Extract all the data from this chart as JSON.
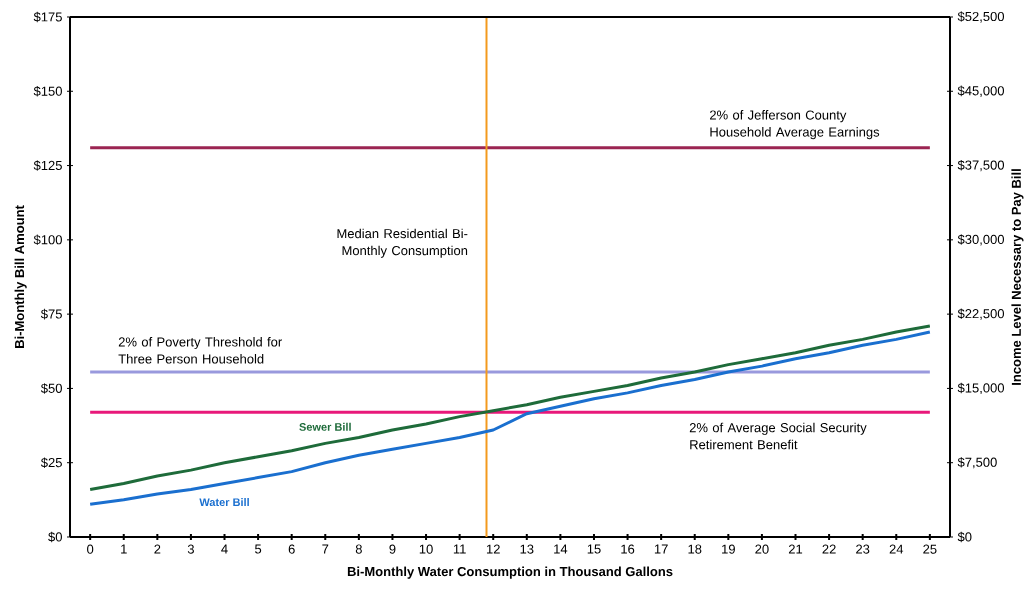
{
  "chart_data": {
    "type": "line",
    "xlabel": "Bi-Monthly Water Consumption in Thousand Gallons",
    "ylabel": "Bi-Monthly Bill Amount",
    "y2label": "Income Level Necessary to Pay Bill",
    "x": [
      0,
      1,
      2,
      3,
      4,
      5,
      6,
      7,
      8,
      9,
      10,
      11,
      12,
      13,
      14,
      15,
      16,
      17,
      18,
      19,
      20,
      21,
      22,
      23,
      24,
      25
    ],
    "series": [
      {
        "name": "Sewer Bill",
        "color": "#1e6b3a",
        "values": [
          16,
          18,
          20.5,
          22.5,
          25,
          27,
          29,
          31.5,
          33.5,
          36,
          38,
          40.5,
          42.5,
          44.5,
          47,
          49,
          51,
          53.5,
          55.5,
          58,
          60,
          62,
          64.5,
          66.5,
          69,
          71
        ]
      },
      {
        "name": "Water Bill",
        "color": "#1a6fcf",
        "values": [
          11,
          12.5,
          14.5,
          16,
          18,
          20,
          22,
          25,
          27.5,
          29.5,
          31.5,
          33.5,
          36,
          41.5,
          44,
          46.5,
          48.5,
          51,
          53,
          55.5,
          57.5,
          60,
          62,
          64.5,
          66.5,
          69
        ]
      }
    ],
    "ref_lines": [
      {
        "axis": "y",
        "value": 131,
        "label": "2% of Jefferson County Household Average Earnings",
        "color": "#9b2552"
      },
      {
        "axis": "y",
        "value": 55.5,
        "label": "2% of Poverty Threshold for Three Person Household",
        "color": "#9999dd"
      },
      {
        "axis": "y",
        "value": 42,
        "label": "2% of Average Social Security Retirement Benefit",
        "color": "#e8187a"
      },
      {
        "axis": "x",
        "value": 11.8,
        "label": "Median Residential Bi-Monthly Consumption",
        "color": "#f39a1e"
      }
    ],
    "xlim": [
      -0.6,
      25.6
    ],
    "xticks": [
      0,
      1,
      2,
      3,
      4,
      5,
      6,
      7,
      8,
      9,
      10,
      11,
      12,
      13,
      14,
      15,
      16,
      17,
      18,
      19,
      20,
      21,
      22,
      23,
      24,
      25
    ],
    "ylim": [
      0,
      175
    ],
    "yticks": [
      {
        "value": 0,
        "label": "$0"
      },
      {
        "value": 25,
        "label": "$25"
      },
      {
        "value": 50,
        "label": "$50"
      },
      {
        "value": 75,
        "label": "$75"
      },
      {
        "value": 100,
        "label": "$100"
      },
      {
        "value": 125,
        "label": "$125"
      },
      {
        "value": 150,
        "label": "$150"
      },
      {
        "value": 175,
        "label": "$175"
      }
    ],
    "y2lim": [
      0,
      52500
    ],
    "y2ticks": [
      {
        "value": 0,
        "label": "$0"
      },
      {
        "value": 7500,
        "label": "$7,500"
      },
      {
        "value": 15000,
        "label": "$15,000"
      },
      {
        "value": 22500,
        "label": "$22,500"
      },
      {
        "value": 30000,
        "label": "$30,000"
      },
      {
        "value": 37500,
        "label": "$37,500"
      },
      {
        "value": 45000,
        "label": "$45,000"
      },
      {
        "value": 52500,
        "label": "$52,500"
      }
    ],
    "grid": false,
    "marker": "none",
    "line_style": "solid"
  }
}
